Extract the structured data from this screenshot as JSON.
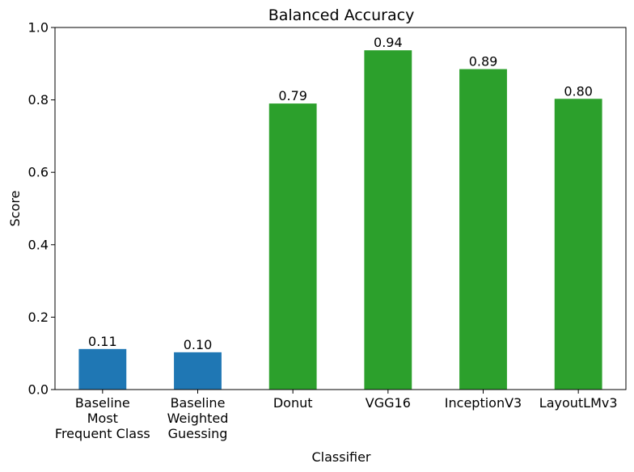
{
  "chart_data": {
    "type": "bar",
    "title": "Balanced Accuracy",
    "xlabel": "Classifier",
    "ylabel": "Score",
    "ylim": [
      0,
      1.0
    ],
    "yticks": [
      "0.0",
      "0.2",
      "0.4",
      "0.6",
      "0.8",
      "1.0"
    ],
    "grid": false,
    "categories": [
      [
        "Baseline",
        "Most",
        "Frequent Class"
      ],
      [
        "Baseline",
        "Weighted",
        "Guessing"
      ],
      [
        "Donut"
      ],
      [
        "VGG16"
      ],
      [
        "InceptionV3"
      ],
      [
        "LayoutLMv3"
      ]
    ],
    "values": [
      0.112,
      0.103,
      0.79,
      0.937,
      0.885,
      0.803
    ],
    "data_labels": [
      "0.11",
      "0.10",
      "0.79",
      "0.94",
      "0.89",
      "0.80"
    ],
    "bar_colors": [
      "#1f77b4",
      "#1f77b4",
      "#2ca02c",
      "#2ca02c",
      "#2ca02c",
      "#2ca02c"
    ]
  }
}
